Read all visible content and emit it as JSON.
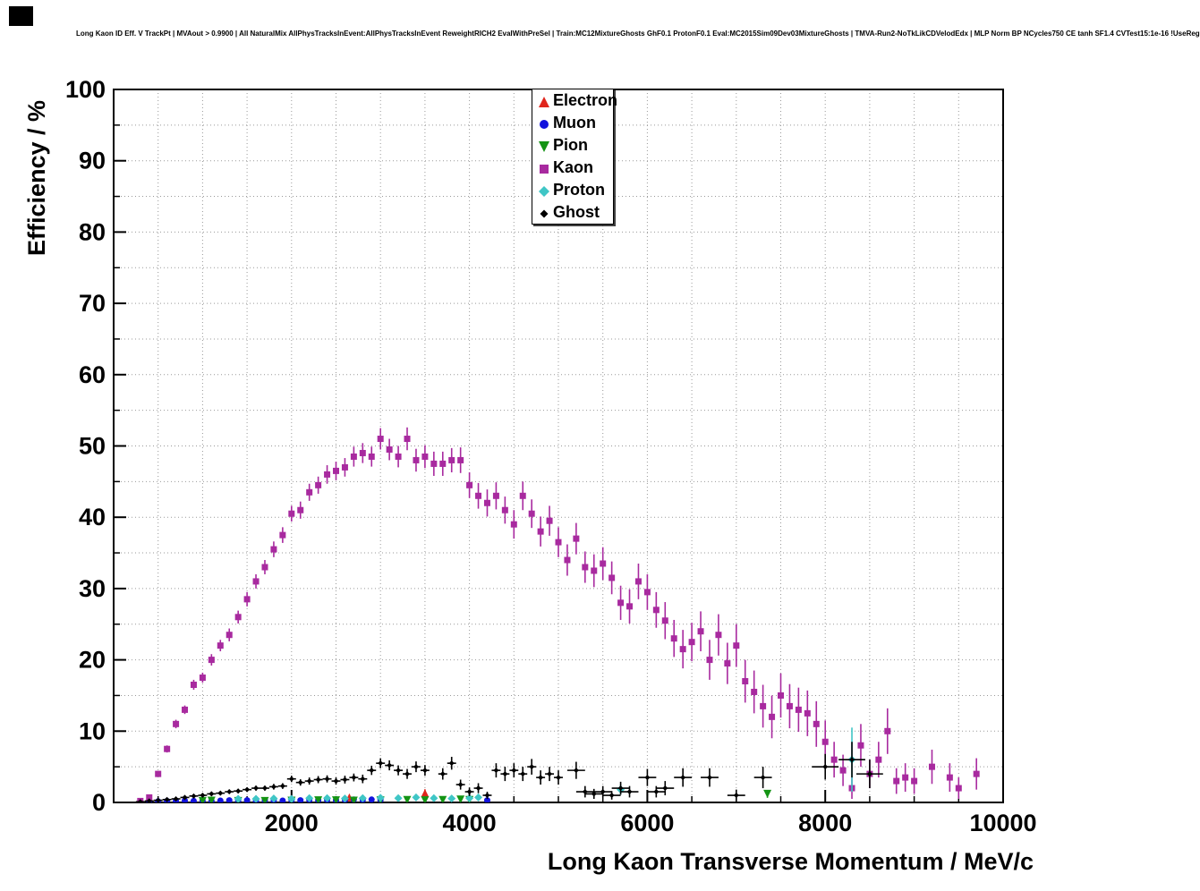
{
  "header": {
    "title": "Long Kaon ID Eff. V TrackPt | MVAout > 0.9900 | All NaturalMix AllPhysTracksInEvent:AllPhysTracksInEvent ReweightRICH2 EvalWithPreSel | Train:MC12MixtureGhosts GhF0.1 ProtonF0.1 Eval:MC2015Sim09Dev03MixtureGhosts | TMVA-Run2-NoTkLikCDVelodEdx | MLP Norm BP NCycles750 CE tanh SF1.4 CVTest15:1e-16 !UseReg"
  },
  "colors": {
    "electron": "#e0251c",
    "muon": "#1212dd",
    "pion": "#149414",
    "kaon": "#a82a9f",
    "proton": "#3fc6c6",
    "ghost": "#000000",
    "grid": "#999999",
    "frame": "#000000"
  },
  "chart_data": {
    "type": "scatter",
    "title": "Long Kaon ID Eff. V TrackPt | MVAout > 0.9900 | All NaturalMix AllPhysTracksInEvent:AllPhysTracksInEvent ReweightRICH2 EvalWithPreSel | Train:MC12MixtureGhosts GhF0.1 ProtonF0.1 Eval:MC2015Sim09Dev03MixtureGhosts | TMVA-Run2-NoTkLikCDVelodEdx | MLP Norm BP NCycles750 CE tanh SF1.4 CVTest15:1e-16 !UseReg",
    "xlabel": "Long Kaon Transverse Momentum / MeV/c",
    "ylabel": "Efficiency / %",
    "xlim": [
      0,
      10000
    ],
    "ylim": [
      0,
      100
    ],
    "x_ticks": [
      2000,
      4000,
      6000,
      8000,
      10000
    ],
    "y_ticks": [
      0,
      10,
      20,
      30,
      40,
      50,
      60,
      70,
      80,
      90,
      100
    ],
    "grid": true,
    "legend_position": "top-center",
    "series": [
      {
        "name": "Electron",
        "marker": "triangle-up",
        "color": "#e0251c",
        "size": 9,
        "points": [
          [
            2650,
            0.7,
            0.35
          ],
          [
            3500,
            1.3,
            0.55
          ]
        ]
      },
      {
        "name": "Muon",
        "marker": "circle",
        "color": "#1212dd",
        "size": 7,
        "points": [
          [
            400,
            0.1,
            0.1
          ],
          [
            500,
            0.15,
            0.1
          ],
          [
            600,
            0.2,
            0.1
          ],
          [
            700,
            0.2,
            0.1
          ],
          [
            800,
            0.25,
            0.1
          ],
          [
            900,
            0.2,
            0.1
          ],
          [
            1000,
            0.25,
            0.1
          ],
          [
            1100,
            0.2,
            0.1
          ],
          [
            1200,
            0.25,
            0.1
          ],
          [
            1300,
            0.3,
            0.1
          ],
          [
            1400,
            0.25,
            0.1
          ],
          [
            1500,
            0.3,
            0.1
          ],
          [
            1600,
            0.25,
            0.1
          ],
          [
            1700,
            0.3,
            0.1
          ],
          [
            1800,
            0.3,
            0.1
          ],
          [
            1900,
            0.25,
            0.1
          ],
          [
            2000,
            0.3,
            0.1
          ],
          [
            2100,
            0.3,
            0.1
          ],
          [
            2200,
            0.35,
            0.1
          ],
          [
            2300,
            0.3,
            0.1
          ],
          [
            2400,
            0.35,
            0.1
          ],
          [
            2500,
            0.3,
            0.1
          ],
          [
            2600,
            0.35,
            0.1
          ],
          [
            2700,
            0.4,
            0.1
          ],
          [
            2800,
            0.35,
            0.1
          ],
          [
            2900,
            0.4,
            0.1
          ],
          [
            3000,
            0.35,
            0.1
          ],
          [
            4200,
            0.3,
            0.2
          ]
        ]
      },
      {
        "name": "Pion",
        "marker": "triangle-down",
        "color": "#149414",
        "size": 9,
        "points": [
          [
            1000,
            0.2,
            0.1
          ],
          [
            1100,
            0.25,
            0.1
          ],
          [
            1400,
            0.2,
            0.1
          ],
          [
            1700,
            0.2,
            0.1
          ],
          [
            2000,
            0.25,
            0.1
          ],
          [
            2300,
            0.3,
            0.1
          ],
          [
            2500,
            0.3,
            0.1
          ],
          [
            2700,
            0.25,
            0.1
          ],
          [
            3000,
            0.3,
            0.1
          ],
          [
            3300,
            0.35,
            0.15
          ],
          [
            3500,
            0.3,
            0.15
          ],
          [
            3700,
            0.35,
            0.15
          ],
          [
            3900,
            0.4,
            0.15
          ],
          [
            4000,
            0.35,
            0.15
          ],
          [
            7350,
            1.2,
            0.55
          ]
        ]
      },
      {
        "name": "Kaon",
        "marker": "square",
        "color": "#a82a9f",
        "size": 7,
        "points": [
          [
            300,
            0.2,
            0.15
          ],
          [
            400,
            0.7,
            0.2
          ],
          [
            500,
            4,
            0.4
          ],
          [
            600,
            7.5,
            0.5
          ],
          [
            700,
            11,
            0.6
          ],
          [
            800,
            13,
            0.6
          ],
          [
            900,
            16.5,
            0.7
          ],
          [
            1000,
            17.5,
            0.7
          ],
          [
            1100,
            20,
            0.8
          ],
          [
            1200,
            22,
            0.8
          ],
          [
            1300,
            23.5,
            0.9
          ],
          [
            1400,
            26,
            0.9
          ],
          [
            1500,
            28.5,
            1
          ],
          [
            1600,
            31,
            1
          ],
          [
            1700,
            33,
            1
          ],
          [
            1800,
            35.5,
            1.1
          ],
          [
            1900,
            37.5,
            1.1
          ],
          [
            2000,
            40.5,
            1.1
          ],
          [
            2100,
            41,
            1.2
          ],
          [
            2200,
            43.5,
            1.2
          ],
          [
            2300,
            44.5,
            1.2
          ],
          [
            2400,
            46,
            1.3
          ],
          [
            2500,
            46.5,
            1.3
          ],
          [
            2600,
            47,
            1.3
          ],
          [
            2700,
            48.5,
            1.4
          ],
          [
            2800,
            49,
            1.4
          ],
          [
            2900,
            48.5,
            1.4
          ],
          [
            3000,
            51,
            1.5
          ],
          [
            3100,
            49.5,
            1.5
          ],
          [
            3200,
            48.5,
            1.5
          ],
          [
            3300,
            51,
            1.6
          ],
          [
            3400,
            48,
            1.6
          ],
          [
            3500,
            48.5,
            1.6
          ],
          [
            3600,
            47.5,
            1.7
          ],
          [
            3700,
            47.5,
            1.7
          ],
          [
            3800,
            48,
            1.7
          ],
          [
            3900,
            48,
            1.8
          ],
          [
            4000,
            44.5,
            1.8
          ],
          [
            4100,
            43,
            1.8
          ],
          [
            4200,
            42,
            1.9
          ],
          [
            4300,
            43,
            1.9
          ],
          [
            4400,
            41,
            1.9
          ],
          [
            4500,
            39,
            2
          ],
          [
            4600,
            43,
            2
          ],
          [
            4700,
            40.5,
            2
          ],
          [
            4800,
            38,
            2.1
          ],
          [
            4900,
            39.5,
            2.1
          ],
          [
            5000,
            36.5,
            2.1
          ],
          [
            5100,
            34,
            2.2
          ],
          [
            5200,
            37,
            2.2
          ],
          [
            5300,
            33,
            2.2
          ],
          [
            5400,
            32.5,
            2.3
          ],
          [
            5500,
            33.5,
            2.3
          ],
          [
            5600,
            31.5,
            2.3
          ],
          [
            5700,
            28,
            2.4
          ],
          [
            5800,
            27.5,
            2.4
          ],
          [
            5900,
            31,
            2.5
          ],
          [
            6000,
            29.5,
            2.5
          ],
          [
            6100,
            27,
            2.5
          ],
          [
            6200,
            25.5,
            2.6
          ],
          [
            6300,
            23,
            2.6
          ],
          [
            6400,
            21.5,
            2.7
          ],
          [
            6500,
            22.5,
            2.7
          ],
          [
            6600,
            24,
            2.8
          ],
          [
            6700,
            20,
            2.8
          ],
          [
            6800,
            23.5,
            2.9
          ],
          [
            6900,
            19.5,
            2.9
          ],
          [
            7000,
            22,
            3
          ],
          [
            7100,
            17,
            3
          ],
          [
            7200,
            15.5,
            3
          ],
          [
            7300,
            13.5,
            3
          ],
          [
            7400,
            12,
            3
          ],
          [
            7500,
            15,
            3.1
          ],
          [
            7600,
            13.5,
            3.1
          ],
          [
            7700,
            13,
            3.1
          ],
          [
            7800,
            12.5,
            3.2
          ],
          [
            7900,
            11,
            3.2
          ],
          [
            8000,
            8.5,
            3
          ],
          [
            8100,
            6,
            2.5
          ],
          [
            8200,
            4.5,
            2.2
          ],
          [
            8300,
            2,
            1.5
          ],
          [
            8400,
            8,
            3
          ],
          [
            8500,
            4,
            2
          ],
          [
            8600,
            6,
            2.5
          ],
          [
            8700,
            10,
            3.2
          ],
          [
            8800,
            3,
            1.8
          ],
          [
            8900,
            3.5,
            2
          ],
          [
            9000,
            3,
            1.8
          ],
          [
            9200,
            5,
            2.4
          ],
          [
            9400,
            3.5,
            2
          ],
          [
            9500,
            2,
            1.5
          ],
          [
            9700,
            4,
            2.2
          ]
        ]
      },
      {
        "name": "Proton",
        "marker": "diamond",
        "color": "#3fc6c6",
        "size": 9,
        "points": [
          [
            1400,
            0.5,
            0.15
          ],
          [
            1600,
            0.5,
            0.15
          ],
          [
            1800,
            0.55,
            0.15
          ],
          [
            2000,
            0.5,
            0.15
          ],
          [
            2200,
            0.6,
            0.15
          ],
          [
            2400,
            0.6,
            0.15
          ],
          [
            2600,
            0.55,
            0.15
          ],
          [
            2800,
            0.6,
            0.2
          ],
          [
            3000,
            0.65,
            0.2
          ],
          [
            3200,
            0.6,
            0.2
          ],
          [
            3400,
            0.7,
            0.2
          ],
          [
            3600,
            0.6,
            0.2
          ],
          [
            3800,
            0.55,
            0.2
          ],
          [
            4000,
            0.6,
            0.25
          ],
          [
            4100,
            0.7,
            0.25
          ],
          [
            5700,
            1.8,
            0.7
          ],
          [
            8300,
            6,
            4.5
          ]
        ]
      },
      {
        "name": "Ghost",
        "marker": "diamond",
        "color": "#000000",
        "size": 6,
        "points": [
          [
            300,
            0.1,
            0.1,
            50
          ],
          [
            400,
            0.2,
            0.1,
            50
          ],
          [
            500,
            0.3,
            0.1,
            50
          ],
          [
            600,
            0.4,
            0.15,
            50
          ],
          [
            700,
            0.5,
            0.15,
            50
          ],
          [
            800,
            0.7,
            0.2,
            50
          ],
          [
            900,
            0.9,
            0.2,
            50
          ],
          [
            1000,
            1,
            0.2,
            50
          ],
          [
            1100,
            1.2,
            0.25,
            50
          ],
          [
            1200,
            1.3,
            0.25,
            50
          ],
          [
            1300,
            1.5,
            0.3,
            50
          ],
          [
            1400,
            1.6,
            0.3,
            50
          ],
          [
            1500,
            1.8,
            0.3,
            50
          ],
          [
            1600,
            2,
            0.35,
            50
          ],
          [
            1700,
            2,
            0.35,
            50
          ],
          [
            1800,
            2.2,
            0.4,
            50
          ],
          [
            1900,
            2.3,
            0.4,
            50
          ],
          [
            2000,
            3.3,
            0.45,
            50
          ],
          [
            2100,
            2.8,
            0.45,
            50
          ],
          [
            2200,
            3,
            0.5,
            50
          ],
          [
            2300,
            3.2,
            0.5,
            50
          ],
          [
            2400,
            3.3,
            0.5,
            50
          ],
          [
            2500,
            3,
            0.5,
            50
          ],
          [
            2600,
            3.2,
            0.55,
            50
          ],
          [
            2700,
            3.5,
            0.55,
            50
          ],
          [
            2800,
            3.3,
            0.6,
            50
          ],
          [
            2900,
            4.5,
            0.65,
            50
          ],
          [
            3000,
            5.5,
            0.7,
            50
          ],
          [
            3100,
            5.2,
            0.7,
            50
          ],
          [
            3200,
            4.5,
            0.7,
            50
          ],
          [
            3300,
            4,
            0.7,
            50
          ],
          [
            3400,
            5,
            0.75,
            50
          ],
          [
            3500,
            4.5,
            0.75,
            50
          ],
          [
            3700,
            4,
            0.8,
            50
          ],
          [
            3800,
            5.5,
            0.9,
            50
          ],
          [
            3900,
            2.5,
            0.7,
            50
          ],
          [
            4000,
            1.5,
            0.6,
            50
          ],
          [
            4100,
            2,
            0.7,
            50
          ],
          [
            4200,
            1,
            0.5,
            50
          ],
          [
            4300,
            4.5,
            1,
            50
          ],
          [
            4400,
            4,
            1,
            50
          ],
          [
            4500,
            4.5,
            1,
            50
          ],
          [
            4600,
            4,
            1,
            50
          ],
          [
            4700,
            5,
            1.1,
            50
          ],
          [
            4800,
            3.5,
            1,
            50
          ],
          [
            4900,
            4,
            1,
            50
          ],
          [
            5000,
            3.5,
            1,
            50
          ],
          [
            5200,
            4.5,
            1.2,
            100
          ],
          [
            5300,
            1.5,
            0.8,
            100
          ],
          [
            5400,
            1.2,
            0.7,
            100
          ],
          [
            5500,
            1.5,
            0.8,
            100
          ],
          [
            5600,
            1,
            0.6,
            100
          ],
          [
            5700,
            2,
            0.9,
            100
          ],
          [
            5800,
            1.5,
            0.8,
            100
          ],
          [
            6000,
            3.5,
            1.2,
            100
          ],
          [
            6100,
            1.5,
            0.8,
            100
          ],
          [
            6200,
            2,
            1,
            100
          ],
          [
            6400,
            3.5,
            1.3,
            100
          ],
          [
            6700,
            3.5,
            1.3,
            100
          ],
          [
            7000,
            1,
            0.8,
            100
          ],
          [
            7300,
            3.5,
            1.5,
            100
          ],
          [
            8000,
            5,
            1.8,
            150
          ],
          [
            8300,
            6,
            2.5,
            150
          ],
          [
            8500,
            4,
            2,
            150
          ]
        ]
      }
    ]
  }
}
